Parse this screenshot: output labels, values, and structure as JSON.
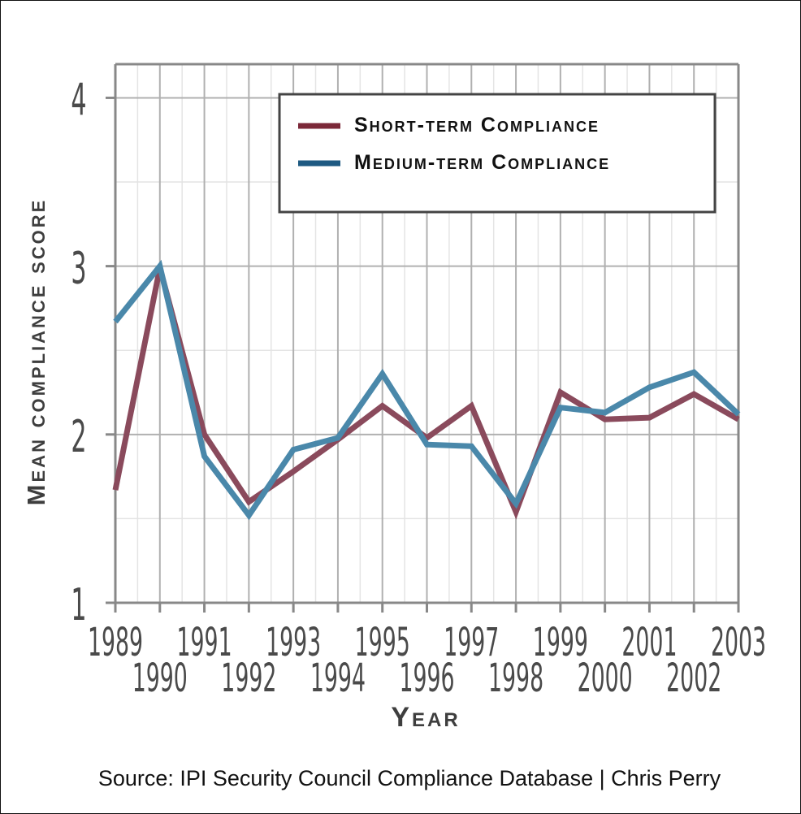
{
  "chart_data": {
    "type": "line",
    "x": [
      1989,
      1990,
      1991,
      1992,
      1993,
      1994,
      1995,
      1996,
      1997,
      1998,
      1999,
      2000,
      2001,
      2002,
      2003
    ],
    "x_tick_labels": [
      "1989",
      "1990",
      "1991",
      "1992",
      "1993",
      "1994",
      "1995",
      "1996",
      "1997",
      "1998",
      "1999",
      "2000",
      "2001",
      "2002",
      "2003"
    ],
    "y_ticks": [
      1,
      2,
      3,
      4
    ],
    "xlim": [
      1989,
      2003
    ],
    "ylim": [
      1,
      4.2
    ],
    "xlabel": "Year",
    "ylabel": "Mean compliance score",
    "grid": true,
    "legend_position": "top-right",
    "series": [
      {
        "name": "Short-term Compliance",
        "color": "#8a4a5c",
        "legend_color": "#7b2838",
        "values": [
          1.67,
          2.99,
          2.0,
          1.6,
          1.78,
          1.97,
          2.17,
          1.98,
          2.17,
          1.54,
          2.25,
          2.09,
          2.1,
          2.24,
          2.09
        ]
      },
      {
        "name": "Medium-term Compliance",
        "color": "#4a88aa",
        "legend_color": "#1e5a82",
        "values": [
          2.67,
          3.0,
          1.87,
          1.52,
          1.91,
          1.98,
          2.36,
          1.94,
          1.93,
          1.59,
          2.16,
          2.13,
          2.28,
          2.37,
          2.12
        ]
      }
    ]
  },
  "source": "Source: IPI Security Council Compliance Database | Chris Perry"
}
